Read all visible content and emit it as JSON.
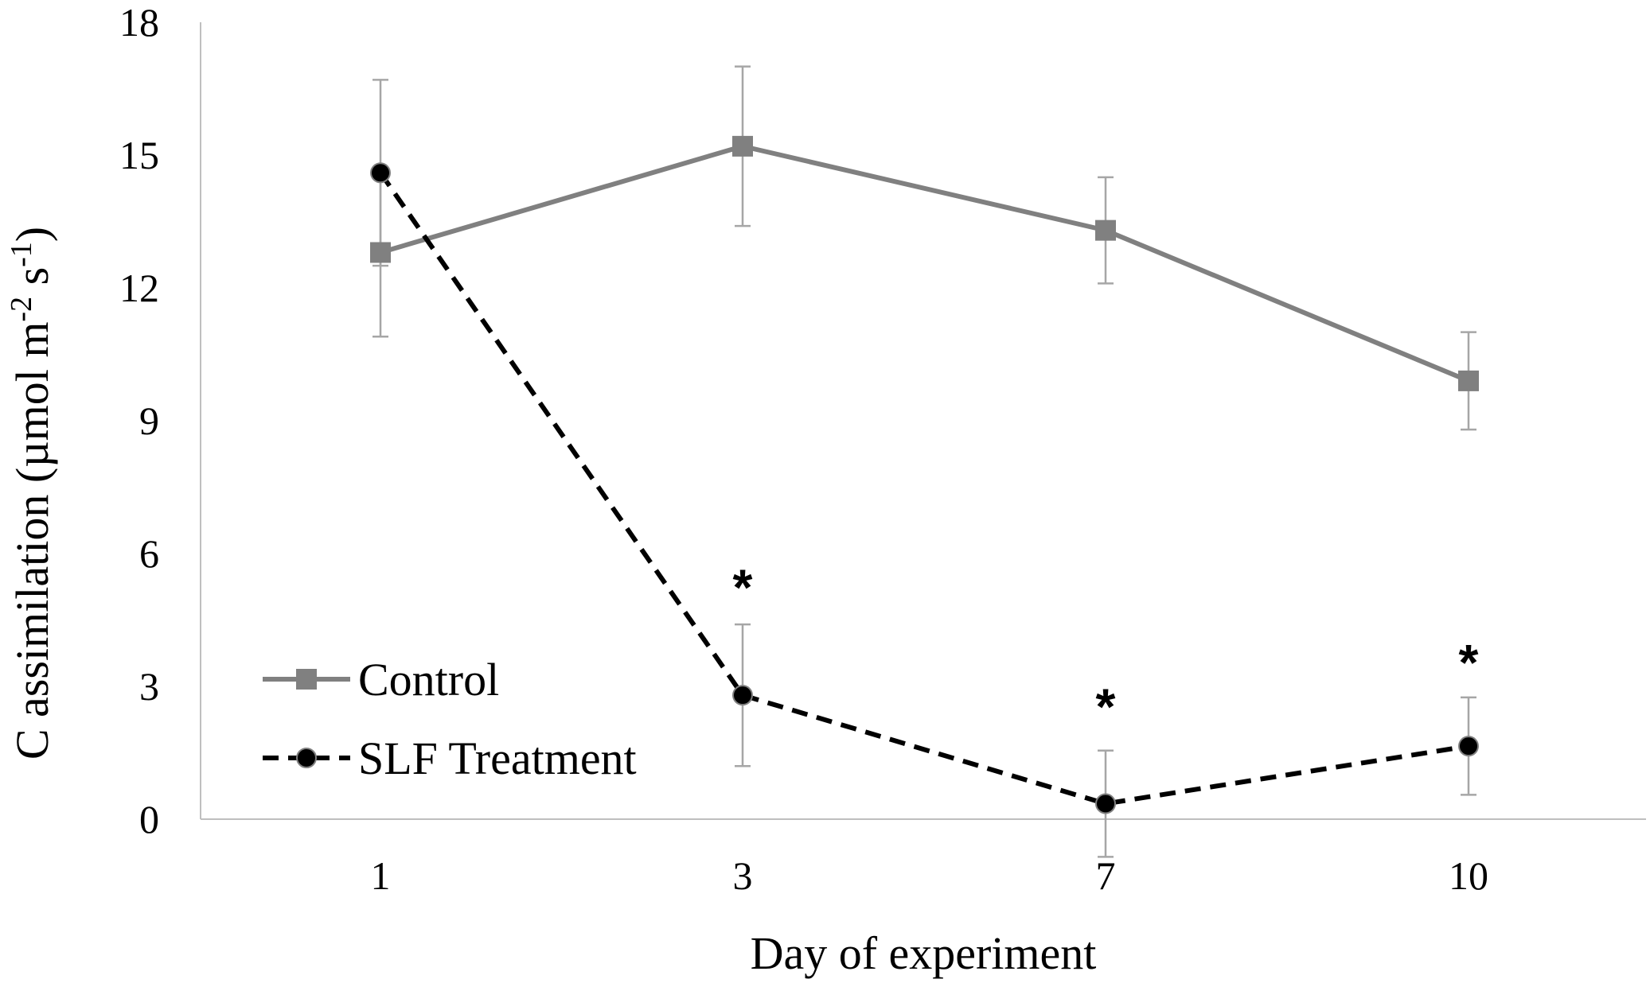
{
  "chart_data": {
    "type": "line",
    "title": "",
    "xlabel": "Day of experiment",
    "ylabel": {
      "prefix": "C assimilation (µmol m",
      "sup1": "-2",
      "mid": " s",
      "sup2": "-1",
      "suffix": ")"
    },
    "categories": [
      "1",
      "3",
      "7",
      "10"
    ],
    "ylim": [
      0,
      18
    ],
    "yticks": [
      "0",
      "3",
      "6",
      "9",
      "12",
      "15",
      "18"
    ],
    "grid": false,
    "legend_position": "bottom-left",
    "series": [
      {
        "name": "Control",
        "values": [
          12.8,
          15.2,
          13.3,
          9.9
        ],
        "error": [
          1.9,
          1.8,
          1.2,
          1.1
        ],
        "color": "#808080",
        "line_style": "solid",
        "marker": "square"
      },
      {
        "name": "SLF Treatment",
        "values": [
          14.6,
          2.8,
          0.35,
          1.65
        ],
        "error": [
          2.1,
          1.6,
          1.2,
          1.1
        ],
        "color": "#000000",
        "line_style": "dashed",
        "marker": "circle"
      }
    ],
    "annotations": [
      {
        "category": "3",
        "text": "*",
        "value": 5.6
      },
      {
        "category": "7",
        "text": "*",
        "value": 2.9
      },
      {
        "category": "10",
        "text": "*",
        "value": 3.9
      }
    ]
  }
}
